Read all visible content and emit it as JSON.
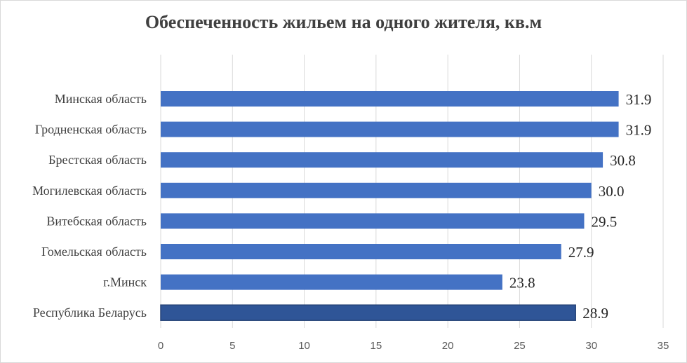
{
  "chart_data": {
    "type": "bar",
    "orientation": "horizontal",
    "title": "Обеспеченность жильем на одного жителя, кв.м",
    "categories": [
      "Минская область",
      "Гродненская область",
      "Брестская область",
      "Могилевская область ",
      "Витебская область",
      "Гомельская область",
      "г.Минск",
      "Республика Беларусь"
    ],
    "values": [
      31.9,
      31.9,
      30.8,
      30.0,
      29.5,
      27.9,
      23.8,
      28.9
    ],
    "value_labels": [
      "31.9",
      "31.9",
      "30.8",
      "30.0",
      "29.5",
      "27.9",
      "23.8",
      "28.9"
    ],
    "xlim": [
      0,
      35
    ],
    "xticks": [
      "0",
      "5",
      "10",
      "15",
      "20",
      "25",
      "30",
      "35"
    ],
    "grid": true,
    "colors": {
      "bar": "#4472c4",
      "highlight_bar": "#2f5597",
      "highlight_border": "#264478",
      "grid": "#d9d9d9",
      "value_text": "#262626"
    },
    "highlight_index": 7
  }
}
